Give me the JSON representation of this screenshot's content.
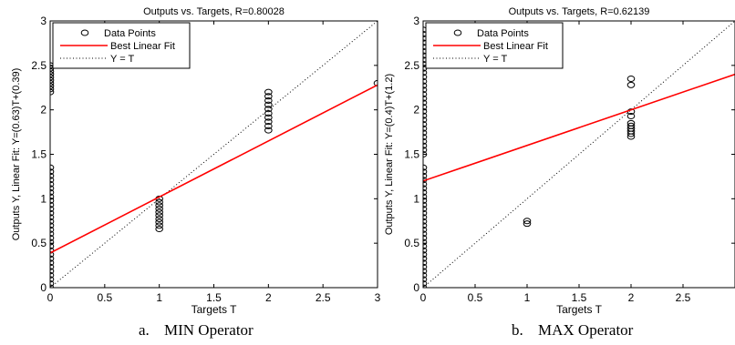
{
  "figure_captions": [
    {
      "letter": "a.",
      "text": "MIN Operator"
    },
    {
      "letter": "b.",
      "text": "MAX Operator"
    }
  ],
  "chart_data": [
    {
      "type": "scatter",
      "title": "Outputs vs. Targets, R=0.80028",
      "xlabel": "Targets T",
      "ylabel": "Outputs Y,  Linear Fit: Y=(0.63)T+(0.39)",
      "xlim": [
        0,
        3
      ],
      "ylim": [
        0,
        3
      ],
      "xticks": [
        0,
        0.5,
        1,
        1.5,
        2,
        2.5,
        3
      ],
      "xtick_labels": [
        "0",
        "0.5",
        "1",
        "1.5",
        "2",
        "2.5",
        "3"
      ],
      "yticks": [
        0,
        0.5,
        1,
        1.5,
        2,
        2.5,
        3
      ],
      "ytick_labels": [
        "0",
        "0.5",
        "1",
        "1.5",
        "2",
        "2.5",
        "3"
      ],
      "grid": false,
      "legend": {
        "placement": "top-left",
        "entries": [
          "Data Points",
          "Best Linear Fit",
          "Y = T"
        ]
      },
      "fit_line": {
        "slope": 0.63,
        "intercept": 0.39,
        "color": "#ff0000"
      },
      "identity_line": true,
      "point_groups": [
        {
          "x": 0,
          "y_min": 0.0,
          "y_max": 1.35,
          "count": 30
        },
        {
          "x": 0,
          "y_min": 2.2,
          "y_max": 2.5,
          "count": 10
        },
        {
          "x": 1,
          "y_min": 0.66,
          "y_max": 1.0,
          "count": 10
        },
        {
          "x": 2,
          "y_min": 1.77,
          "y_max": 2.2,
          "count": 10
        },
        {
          "x": 3,
          "y_min": 2.3,
          "y_max": 2.3,
          "count": 1
        }
      ]
    },
    {
      "type": "scatter",
      "title": "Outputs vs. Targets, R=0.62139",
      "xlabel": "Targets T",
      "ylabel": "Outputs Y,  Linear Fit: Y=(0.4)T+(1.2)",
      "xlim": [
        0,
        3
      ],
      "ylim": [
        0,
        3
      ],
      "xticks": [
        0,
        0.5,
        1,
        1.5,
        2,
        2.5
      ],
      "xtick_labels": [
        "0",
        "0.5",
        "1",
        "1.5",
        "2",
        "2.5"
      ],
      "yticks": [
        0,
        0.5,
        1,
        1.5,
        2,
        2.5,
        3
      ],
      "ytick_labels": [
        "0",
        "0.5",
        "1",
        "1.5",
        "2",
        "2.5",
        "3"
      ],
      "grid": false,
      "legend": {
        "placement": "top-left",
        "entries": [
          "Data Points",
          "Best Linear Fit",
          "Y = T"
        ]
      },
      "fit_line": {
        "slope": 0.4,
        "intercept": 1.2,
        "color": "#ff0000"
      },
      "identity_line": true,
      "point_groups": [
        {
          "x": 0,
          "y_min": 0.0,
          "y_max": 1.35,
          "count": 30
        },
        {
          "x": 0,
          "y_min": 1.5,
          "y_max": 2.9,
          "count": 30
        },
        {
          "x": 1,
          "y_min": 0.72,
          "y_max": 0.75,
          "count": 2
        },
        {
          "x": 2,
          "y_min": 1.7,
          "y_max": 1.85,
          "count": 6
        },
        {
          "x": 2,
          "y_min": 1.93,
          "y_max": 1.98,
          "count": 2
        },
        {
          "x": 2,
          "y_min": 2.28,
          "y_max": 2.35,
          "count": 2
        }
      ]
    }
  ]
}
